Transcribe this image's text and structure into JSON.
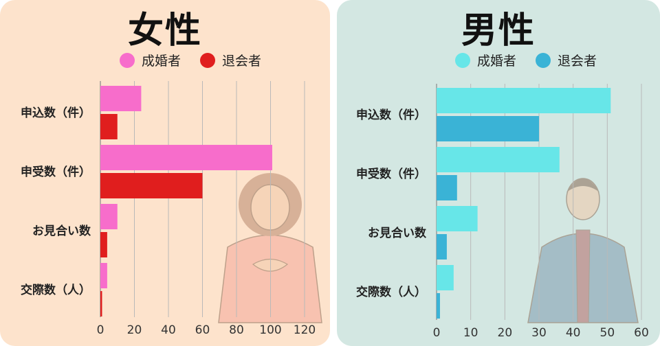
{
  "chart_data": [
    {
      "type": "bar",
      "orientation": "horizontal",
      "title": "女性",
      "categories": [
        "申込数（件）",
        "申受数（件）",
        "お見合い数",
        "交際数（人）"
      ],
      "series": [
        {
          "name": "成婚者",
          "color": "#f76dcb",
          "values": [
            24,
            101,
            10,
            4
          ]
        },
        {
          "name": "退会者",
          "color": "#e01e1e",
          "values": [
            10,
            60,
            4,
            1
          ]
        }
      ],
      "xlim": [
        0,
        120
      ],
      "xticks": [
        0,
        20,
        40,
        60,
        80,
        100,
        120
      ],
      "grid": true,
      "legend": "top"
    },
    {
      "type": "bar",
      "orientation": "horizontal",
      "title": "男性",
      "categories": [
        "申込数（件）",
        "申受数（件）",
        "お見合い数",
        "交際数（人）"
      ],
      "series": [
        {
          "name": "成婚者",
          "color": "#67e6e8",
          "values": [
            51,
            36,
            12,
            5
          ]
        },
        {
          "name": "退会者",
          "color": "#3ab3d6",
          "values": [
            30,
            6,
            3,
            1
          ]
        }
      ],
      "xlim": [
        0,
        60
      ],
      "xticks": [
        0,
        10,
        20,
        30,
        40,
        50,
        60
      ],
      "grid": true,
      "legend": "top"
    }
  ]
}
